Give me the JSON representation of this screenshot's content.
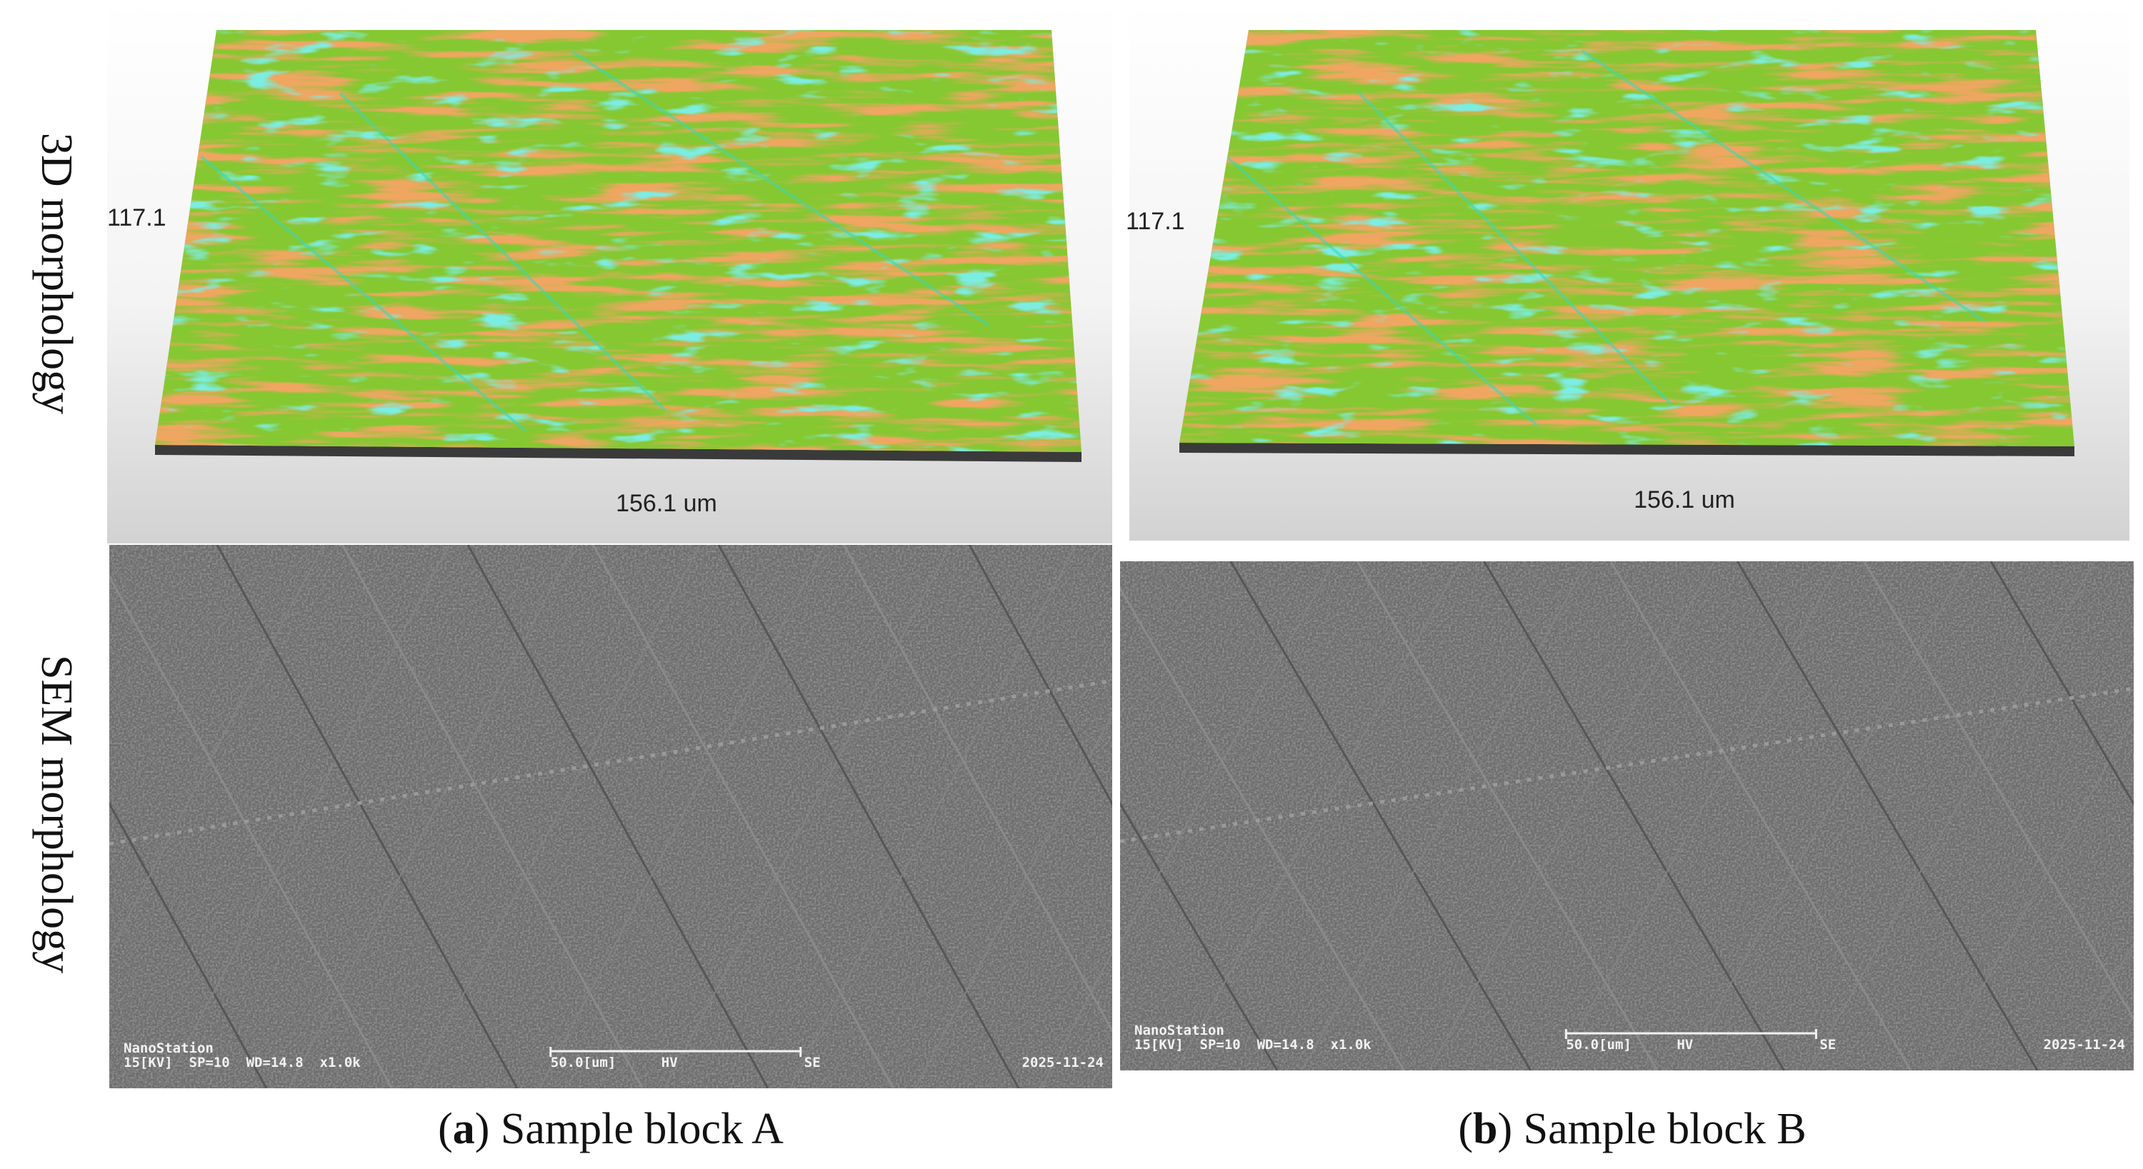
{
  "row_labels": [
    "3D morphology",
    "SEM morphology"
  ],
  "panels": [
    {
      "caption": {
        "open": "(",
        "letter": "a",
        "text": ") Sample block A"
      },
      "profile": {
        "height_label": "117.1",
        "width_label": "156.1 um"
      },
      "sem": {
        "instrument": "NanoStation",
        "params": "15[KV]  SP=10  WD=14.8  x1.0k",
        "scale": "50.0[um]",
        "hv": "HV",
        "detector": "SE",
        "date": "2025-11-24"
      }
    },
    {
      "caption": {
        "open": "(",
        "letter": "b",
        "text": ") Sample block B"
      },
      "profile": {
        "height_label": "117.1",
        "width_label": "156.1 um"
      },
      "sem": {
        "instrument": "NanoStation",
        "params": "15[KV]  SP=10  WD=14.8  x1.0k",
        "scale": "50.0[um]",
        "hv": "HV",
        "detector": "SE",
        "date": "2025-11-24"
      }
    }
  ]
}
